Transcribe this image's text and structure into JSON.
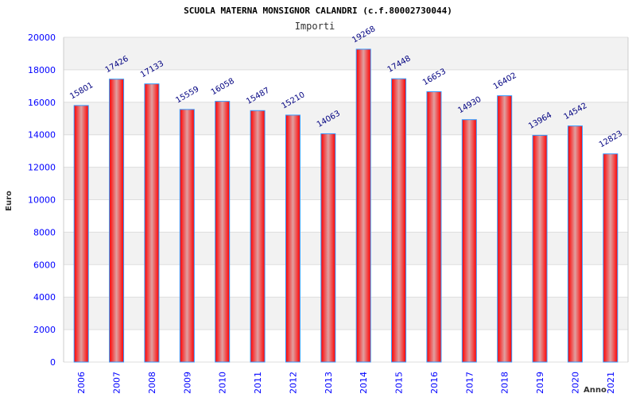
{
  "chart_data": {
    "type": "bar",
    "title": "SCUOLA MATERNA MONSIGNOR CALANDRI (c.f.80002730044)",
    "subtitle": "Importi",
    "xlabel": "Anno",
    "ylabel": "Euro",
    "ylim": [
      0,
      20000
    ],
    "yticks": [
      0,
      2000,
      4000,
      6000,
      8000,
      10000,
      12000,
      14000,
      16000,
      18000,
      20000
    ],
    "categories": [
      "2006",
      "2007",
      "2008",
      "2009",
      "2010",
      "2011",
      "2012",
      "2013",
      "2014",
      "2015",
      "2016",
      "2017",
      "2018",
      "2019",
      "2020",
      "2021"
    ],
    "values": [
      15801,
      17426,
      17133,
      15559,
      16058,
      15487,
      15210,
      14063,
      19268,
      17448,
      16653,
      14930,
      16402,
      13964,
      14542,
      12823
    ],
    "grid": true,
    "colors": {
      "bar": "#ff0000",
      "bar_highlight": "#e0a0a0",
      "bar_edge": "#3399ff",
      "band": "#f2f2f2",
      "tick": "#0000ff",
      "label": "#000080"
    }
  }
}
